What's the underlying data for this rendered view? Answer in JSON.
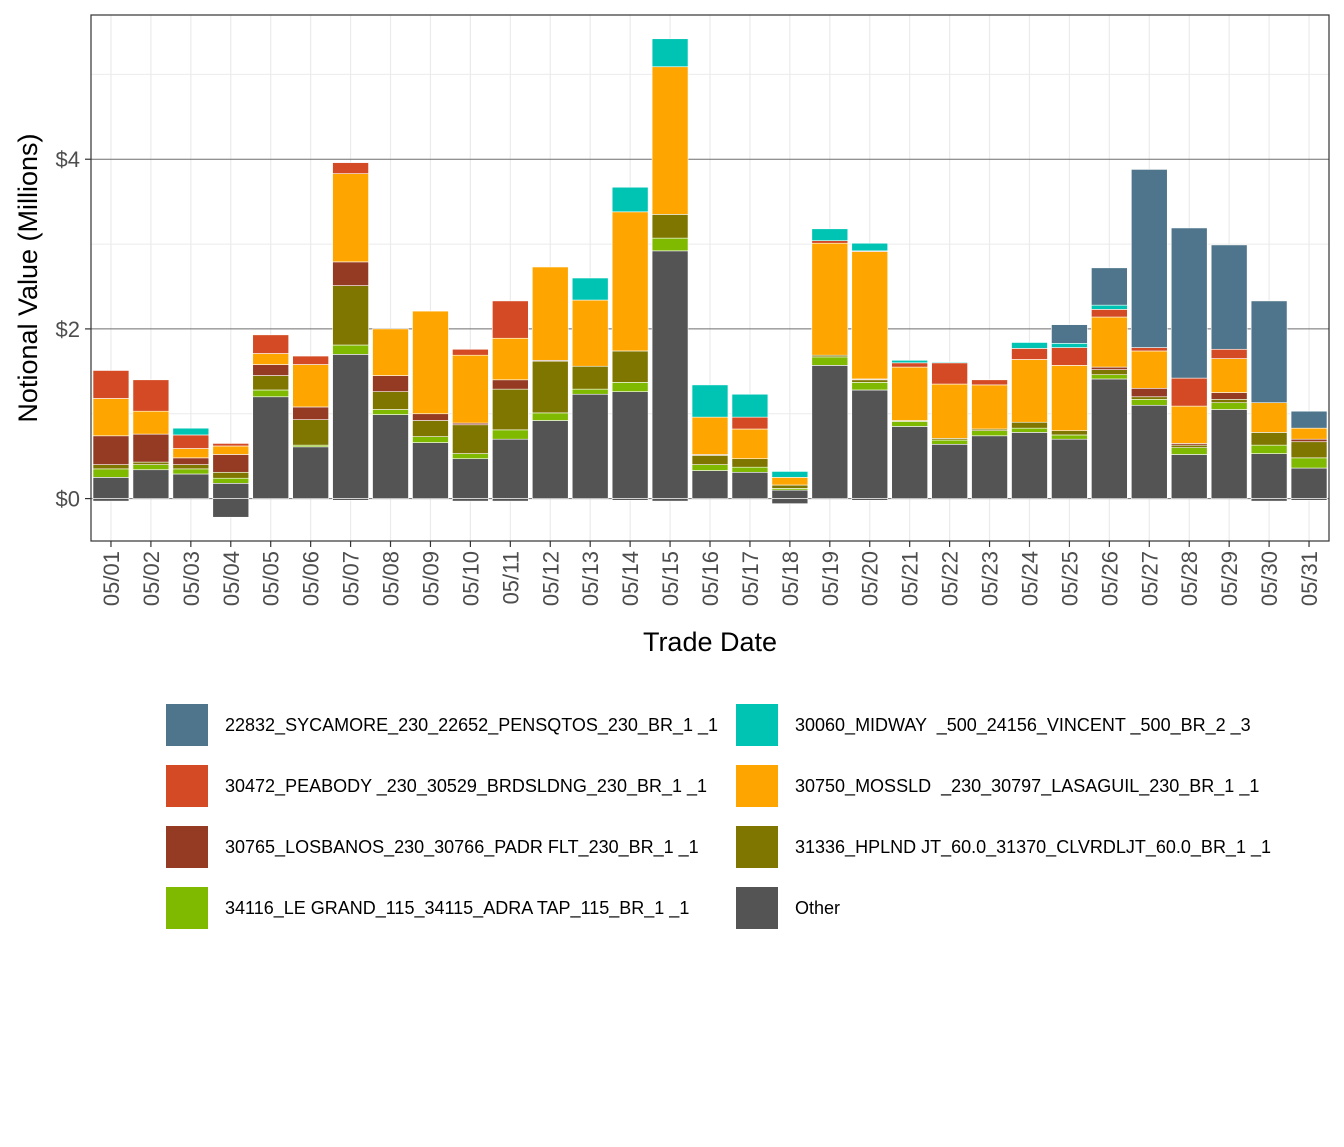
{
  "chart_data": {
    "type": "bar",
    "stacked": true,
    "xlabel": "Trade Date",
    "ylabel": "Notional Value (Millions)",
    "ylim": [
      -0.5,
      5.7
    ],
    "y_ticks": [
      0,
      2,
      4
    ],
    "y_tick_labels": [
      "$0",
      "$2",
      "$4"
    ],
    "grid": true,
    "legend_position": "bottom",
    "categories": [
      "05/01",
      "05/02",
      "05/03",
      "05/04",
      "05/05",
      "05/06",
      "05/07",
      "05/08",
      "05/09",
      "05/10",
      "05/11",
      "05/12",
      "05/13",
      "05/14",
      "05/15",
      "05/16",
      "05/17",
      "05/18",
      "05/19",
      "05/20",
      "05/21",
      "05/22",
      "05/23",
      "05/24",
      "05/25",
      "05/26",
      "05/27",
      "05/28",
      "05/29",
      "05/30",
      "05/31"
    ],
    "series": [
      {
        "name": "Other",
        "color": "#545454",
        "values": [
          0.25,
          0.34,
          0.29,
          0.18,
          1.2,
          0.61,
          1.7,
          0.99,
          0.66,
          0.47,
          0.7,
          0.92,
          1.23,
          1.26,
          2.92,
          0.33,
          0.31,
          0.1,
          1.57,
          1.28,
          0.85,
          0.64,
          0.74,
          0.78,
          0.7,
          1.41,
          1.1,
          0.52,
          1.05,
          0.53,
          0.36
        ],
        "negatives": [
          -0.03,
          0,
          0,
          -0.22,
          0,
          0,
          -0.02,
          0,
          0,
          -0.03,
          -0.03,
          0,
          0,
          -0.02,
          -0.03,
          0,
          0,
          -0.06,
          0,
          -0.02,
          0,
          0,
          0,
          0,
          0,
          0,
          0,
          0,
          0,
          -0.03,
          -0.02
        ]
      },
      {
        "name": "34116_LE GRAND_115_34115_ADRA TAP_115_BR_1 _1",
        "color": "#7FBA00",
        "values": [
          0.1,
          0.06,
          0.06,
          0.06,
          0.08,
          0.02,
          0.11,
          0.06,
          0.07,
          0.06,
          0.11,
          0.09,
          0.06,
          0.11,
          0.15,
          0.07,
          0.06,
          0.02,
          0.1,
          0.09,
          0.06,
          0.05,
          0.06,
          0.05,
          0.05,
          0.05,
          0.07,
          0.08,
          0.08,
          0.1,
          0.12
        ]
      },
      {
        "name": "31336_HPLND JT_60.0_31370_CLVRDLJT_60.0_BR_1 _1",
        "color": "#7F7600",
        "values": [
          0.05,
          0.03,
          0.05,
          0.07,
          0.17,
          0.3,
          0.7,
          0.21,
          0.19,
          0.34,
          0.48,
          0.61,
          0.27,
          0.37,
          0.28,
          0.11,
          0.1,
          0.04,
          0.02,
          0.03,
          0.01,
          0.02,
          0.02,
          0.07,
          0.05,
          0.06,
          0.03,
          0.03,
          0.04,
          0.15,
          0.19
        ]
      },
      {
        "name": "30765_LOSBANOS_230_30766_PADR FLT_230_BR_1 _1",
        "color": "#953B23",
        "values": [
          0.34,
          0.33,
          0.08,
          0.21,
          0.13,
          0.15,
          0.28,
          0.19,
          0.08,
          0.02,
          0.11,
          0.01,
          0.0,
          0.0,
          0.0,
          0.01,
          0.0,
          0.0,
          0.0,
          0.01,
          0.0,
          0.0,
          0.0,
          0.0,
          0.0,
          0.03,
          0.1,
          0.02,
          0.08,
          0.0,
          0.03
        ]
      },
      {
        "name": "30750_MOSSLD  _230_30797_LASAGUIL_230_BR_1 _1",
        "color": "#FFA500",
        "values": [
          0.44,
          0.27,
          0.11,
          0.1,
          0.13,
          0.5,
          1.04,
          0.55,
          1.21,
          0.8,
          0.49,
          1.1,
          0.78,
          1.64,
          1.74,
          0.44,
          0.35,
          0.09,
          1.32,
          1.5,
          0.63,
          0.64,
          0.52,
          0.74,
          0.77,
          0.59,
          0.44,
          0.44,
          0.4,
          0.35,
          0.13
        ]
      },
      {
        "name": "30472_PEABODY _230_30529_BRDSLDNG_230_BR_1 _1",
        "color": "#D34A24",
        "values": [
          0.33,
          0.37,
          0.16,
          0.03,
          0.22,
          0.1,
          0.13,
          0.0,
          0.0,
          0.07,
          0.44,
          0.0,
          0.0,
          0.0,
          0.0,
          0.0,
          0.14,
          0.0,
          0.03,
          0.01,
          0.05,
          0.25,
          0.06,
          0.13,
          0.21,
          0.09,
          0.04,
          0.33,
          0.11,
          0.0,
          0.0
        ]
      },
      {
        "name": "30060_MIDWAY  _500_24156_VINCENT _500_BR_2 _3",
        "color": "#00C4B3",
        "values": [
          0.0,
          0.0,
          0.08,
          0.0,
          0.0,
          0.0,
          0.0,
          0.0,
          0.0,
          0.0,
          0.0,
          0.0,
          0.26,
          0.29,
          0.33,
          0.38,
          0.27,
          0.07,
          0.14,
          0.09,
          0.03,
          0.01,
          0.0,
          0.07,
          0.05,
          0.05,
          0.0,
          0.0,
          0.0,
          0.0,
          0.0
        ]
      },
      {
        "name": "22832_SYCAMORE_230_22652_PENSQTOS_230_BR_1 _1",
        "color": "#4E758B",
        "values": [
          0.0,
          0.0,
          0.0,
          0.0,
          0.0,
          0.0,
          0.0,
          0.0,
          0.0,
          0.0,
          0.0,
          0.0,
          0.0,
          0.0,
          0.0,
          0.0,
          0.0,
          0.0,
          0.0,
          0.0,
          0.0,
          0.0,
          0.0,
          0.0,
          0.22,
          0.44,
          2.1,
          1.77,
          1.23,
          1.2,
          0.2
        ]
      }
    ],
    "legend_order": [
      "22832_SYCAMORE_230_22652_PENSQTOS_230_BR_1 _1",
      "30060_MIDWAY  _500_24156_VINCENT _500_BR_2 _3",
      "30472_PEABODY _230_30529_BRDSLDNG_230_BR_1 _1",
      "30750_MOSSLD  _230_30797_LASAGUIL_230_BR_1 _1",
      "30765_LOSBANOS_230_30766_PADR FLT_230_BR_1 _1",
      "31336_HPLND JT_60.0_31370_CLVRDLJT_60.0_BR_1 _1",
      "34116_LE GRAND_115_34115_ADRA TAP_115_BR_1 _1",
      "Other"
    ]
  }
}
